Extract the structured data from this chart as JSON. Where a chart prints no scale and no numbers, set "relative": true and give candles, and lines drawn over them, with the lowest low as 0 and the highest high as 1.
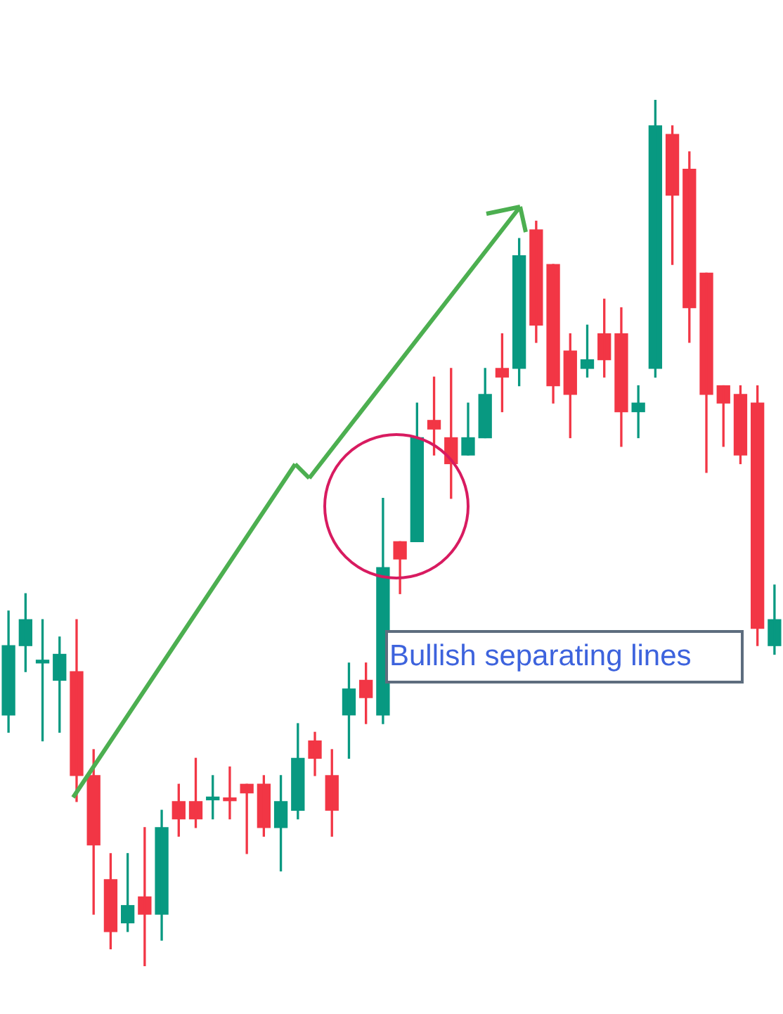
{
  "chart_data": {
    "type": "candlestick",
    "relative": true,
    "categories": [
      null,
      null,
      null,
      null,
      null,
      null,
      null,
      null,
      null,
      null,
      null,
      null,
      null,
      null,
      null,
      null,
      null,
      null,
      null,
      null,
      null,
      null,
      null,
      null,
      null,
      null,
      null,
      null,
      null,
      null,
      null,
      null,
      null,
      null,
      null,
      null,
      null,
      null,
      null,
      null,
      null,
      null,
      null,
      null,
      null,
      null
    ],
    "ohlc": [
      [
        0.29,
        0.41,
        0.27,
        0.37
      ],
      [
        0.37,
        0.43,
        0.34,
        0.4
      ],
      [
        0.35,
        0.4,
        0.26,
        0.35
      ],
      [
        0.33,
        0.38,
        0.27,
        0.36
      ],
      [
        0.34,
        0.4,
        0.19,
        0.22
      ],
      [
        0.22,
        0.25,
        0.06,
        0.14
      ],
      [
        0.1,
        0.13,
        0.02,
        0.04
      ],
      [
        0.05,
        0.13,
        0.04,
        0.07
      ],
      [
        0.08,
        0.16,
        0,
        0.06
      ],
      [
        0.06,
        0.18,
        0.03,
        0.16
      ],
      [
        0.19,
        0.21,
        0.15,
        0.17
      ],
      [
        0.19,
        0.24,
        0.16,
        0.17
      ],
      [
        0.192,
        0.22,
        0.17,
        0.195
      ],
      [
        0.194,
        0.23,
        0.17,
        0.191
      ],
      [
        0.21,
        0.21,
        0.13,
        0.2
      ],
      [
        0.21,
        0.22,
        0.15,
        0.16
      ],
      [
        0.16,
        0.22,
        0.11,
        0.19
      ],
      [
        0.18,
        0.28,
        0.17,
        0.24
      ],
      [
        0.26,
        0.27,
        0.22,
        0.24
      ],
      [
        0.22,
        0.25,
        0.15,
        0.18
      ],
      [
        0.29,
        0.35,
        0.24,
        0.32
      ],
      [
        0.33,
        0.35,
        0.28,
        0.31
      ],
      [
        0.29,
        0.54,
        0.28,
        0.46
      ],
      [
        0.49,
        0.49,
        0.43,
        0.47
      ],
      [
        0.49,
        0.65,
        0.49,
        0.61
      ],
      [
        0.63,
        0.68,
        0.59,
        0.62
      ],
      [
        0.61,
        0.69,
        0.54,
        0.58
      ],
      [
        0.59,
        0.65,
        0.59,
        0.61
      ],
      [
        0.61,
        0.69,
        0.61,
        0.66
      ],
      [
        0.69,
        0.73,
        0.64,
        0.68
      ],
      [
        0.69,
        0.84,
        0.67,
        0.82
      ],
      [
        0.85,
        0.86,
        0.72,
        0.74
      ],
      [
        0.81,
        0.81,
        0.65,
        0.67
      ],
      [
        0.71,
        0.73,
        0.61,
        0.66
      ],
      [
        0.69,
        0.74,
        0.68,
        0.7
      ],
      [
        0.73,
        0.77,
        0.68,
        0.7
      ],
      [
        0.73,
        0.76,
        0.6,
        0.64
      ],
      [
        0.64,
        0.67,
        0.61,
        0.65
      ],
      [
        0.69,
        1,
        0.68,
        0.97
      ],
      [
        0.96,
        0.97,
        0.81,
        0.89
      ],
      [
        0.92,
        0.94,
        0.72,
        0.76
      ],
      [
        0.8,
        0.8,
        0.57,
        0.66
      ],
      [
        0.67,
        0.67,
        0.6,
        0.65
      ],
      [
        0.66,
        0.67,
        0.58,
        0.59
      ],
      [
        0.65,
        0.67,
        0.37,
        0.39
      ],
      [
        0.37,
        0.44,
        0.36,
        0.4
      ]
    ],
    "colors": [
      "#089981",
      "#089981",
      "#089981",
      "#089981",
      "#f23645",
      "#f23645",
      "#f23645",
      "#089981",
      "#f23645",
      "#089981",
      "#f23645",
      "#f23645",
      "#089981",
      "#f23645",
      "#f23645",
      "#f23645",
      "#089981",
      "#089981",
      "#f23645",
      "#f23645",
      "#089981",
      "#f23645",
      "#089981",
      "#f23645",
      "#089981",
      "#f23645",
      "#f23645",
      "#089981",
      "#089981",
      "#f23645",
      "#089981",
      "#f23645",
      "#f23645",
      "#f23645",
      "#089981",
      "#f23645",
      "#f23645",
      "#089981",
      "#089981",
      "#f23645",
      "#f23645",
      "#f23645",
      "#f23645",
      "#f23645",
      "#f23645",
      "#089981"
    ],
    "annotations": [
      "Bullish separating lines"
    ]
  }
}
